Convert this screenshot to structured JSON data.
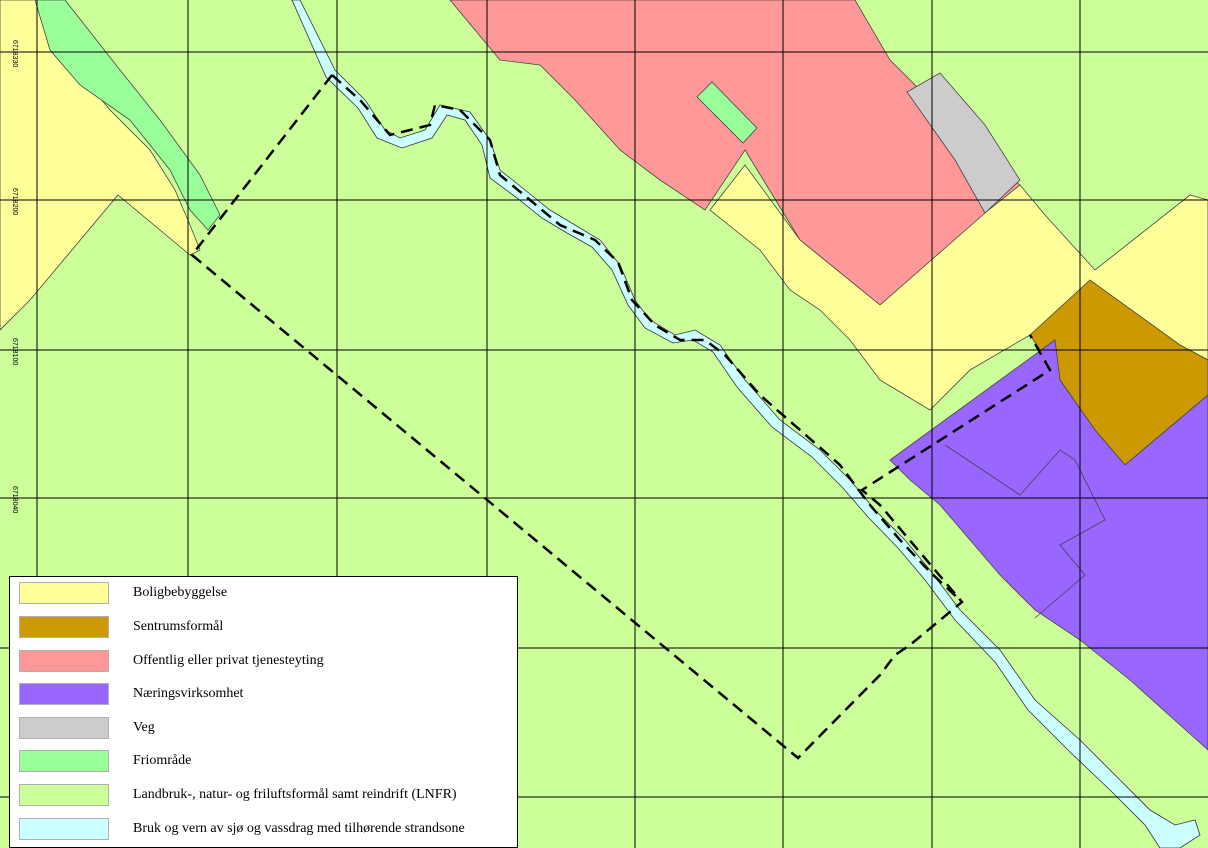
{
  "map": {
    "coordinate_labels": [
      "6718330",
      "6718200",
      "6718100",
      "6718040"
    ]
  },
  "legend": {
    "items": [
      {
        "label": "Boligbebyggelse",
        "color": "#ffff99"
      },
      {
        "label": "Sentrumsformål",
        "color": "#cc9900"
      },
      {
        "label": "Offentlig eller privat tjenesteyting",
        "color": "#ff9999"
      },
      {
        "label": "Næringsvirksomhet",
        "color": "#9966ff"
      },
      {
        "label": "Veg",
        "color": "#cccccc"
      },
      {
        "label": "Friområde",
        "color": "#99ff99"
      },
      {
        "label": "Landbruk-, natur- og friluftsformål samt reindrift (LNFR)",
        "color": "#ccff99"
      },
      {
        "label": "Bruk og vern av sjø og vassdrag med tilhørende strandsone",
        "color": "#ccffff"
      }
    ]
  }
}
